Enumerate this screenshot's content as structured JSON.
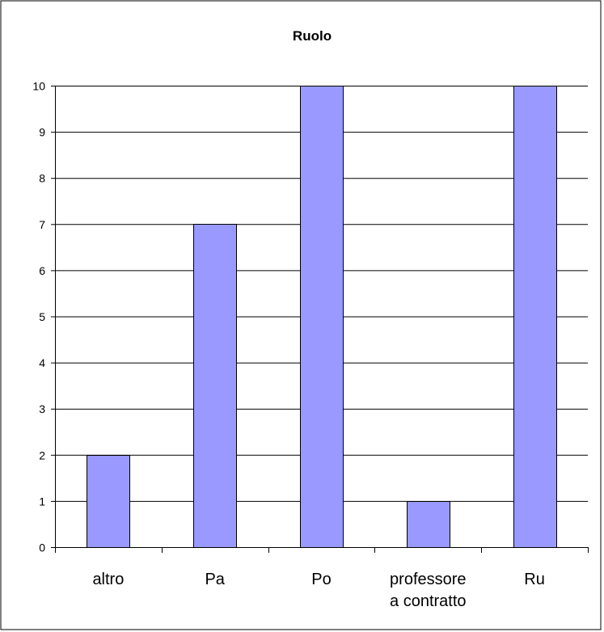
{
  "chart_data": {
    "type": "bar",
    "title": "Ruolo",
    "categories": [
      [
        "altro"
      ],
      [
        "Pa"
      ],
      [
        "Po"
      ],
      [
        "professore",
        "a contratto"
      ],
      [
        "Ru"
      ]
    ],
    "values": [
      2,
      7,
      10,
      1,
      10
    ],
    "ylim": [
      0,
      10
    ],
    "yticks": [
      0,
      1,
      2,
      3,
      4,
      5,
      6,
      7,
      8,
      9,
      10
    ],
    "grid": true,
    "legend": "none",
    "colors": {
      "bar_fill": "#9999ff",
      "bar_stroke": "#000000",
      "grid": "#000000",
      "axis": "#000000",
      "frame": "#000000",
      "background": "#ffffff"
    }
  }
}
